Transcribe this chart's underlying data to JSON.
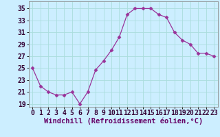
{
  "x": [
    0,
    1,
    2,
    3,
    4,
    5,
    6,
    7,
    8,
    9,
    10,
    11,
    12,
    13,
    14,
    15,
    16,
    17,
    18,
    19,
    20,
    21,
    22,
    23
  ],
  "y": [
    25,
    22,
    21,
    20.5,
    20.5,
    21,
    19,
    21,
    24.7,
    26.2,
    28,
    30.2,
    34,
    35,
    35,
    35,
    34,
    33.5,
    31,
    29.7,
    29,
    27.5,
    27.5,
    27
  ],
  "line_color": "#993399",
  "marker": "D",
  "marker_size": 2.5,
  "bg_color": "#cceeff",
  "grid_color": "#aadddd",
  "xlabel": "Windchill (Refroidissement éolien,°C)",
  "xlabel_fontsize": 7.5,
  "yticks": [
    19,
    21,
    23,
    25,
    27,
    29,
    31,
    33,
    35
  ],
  "xticks": [
    0,
    1,
    2,
    3,
    4,
    5,
    6,
    7,
    8,
    9,
    10,
    11,
    12,
    13,
    14,
    15,
    16,
    17,
    18,
    19,
    20,
    21,
    22,
    23
  ],
  "ylim": [
    18.5,
    36.2
  ],
  "xlim": [
    -0.5,
    23.5
  ],
  "tick_fontsize": 7
}
